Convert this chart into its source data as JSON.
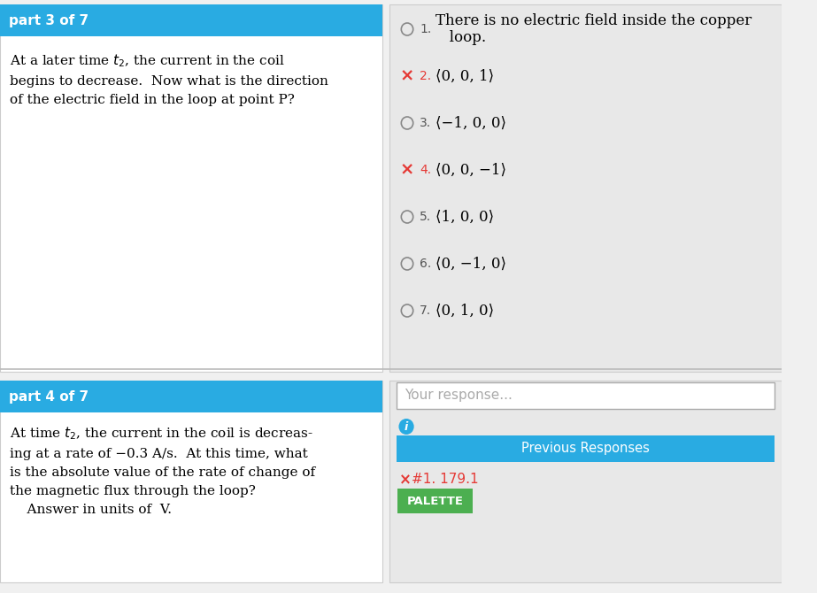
{
  "bg_color": "#f0f0f0",
  "white_bg": "#ffffff",
  "blue_header": "#29ABE2",
  "green_button": "#4CAF50",
  "light_gray": "#e8e8e8",
  "red_x_color": "#e53935",
  "circle_color": "#888888",
  "part3_header": "part 3 of 7",
  "part4_header": "part 4 of 7",
  "your_response_placeholder": "Your response...",
  "previous_responses_text": "Previous Responses",
  "wrong_response_text": "#1. 179.1",
  "palette_text": "PALETTE",
  "info_circle_color": "#29ABE2",
  "answers": [
    {
      "marker": "circle",
      "num": "1.",
      "text": "There is no electric field inside the copper\n   loop.",
      "wrong": false
    },
    {
      "marker": "x",
      "num": "2.",
      "text": "⟨0, 0, 1⟩",
      "wrong": true
    },
    {
      "marker": "circle",
      "num": "3.",
      "text": "⟨−1, 0, 0⟩",
      "wrong": false
    },
    {
      "marker": "x",
      "num": "4.",
      "text": "⟨0, 0, −1⟩",
      "wrong": true
    },
    {
      "marker": "circle",
      "num": "5.",
      "text": "⟨1, 0, 0⟩",
      "wrong": false
    },
    {
      "marker": "circle",
      "num": "6.",
      "text": "⟨0, −1, 0⟩",
      "wrong": false
    },
    {
      "marker": "circle",
      "num": "7.",
      "text": "⟨0, 1, 0⟩",
      "wrong": false
    }
  ]
}
